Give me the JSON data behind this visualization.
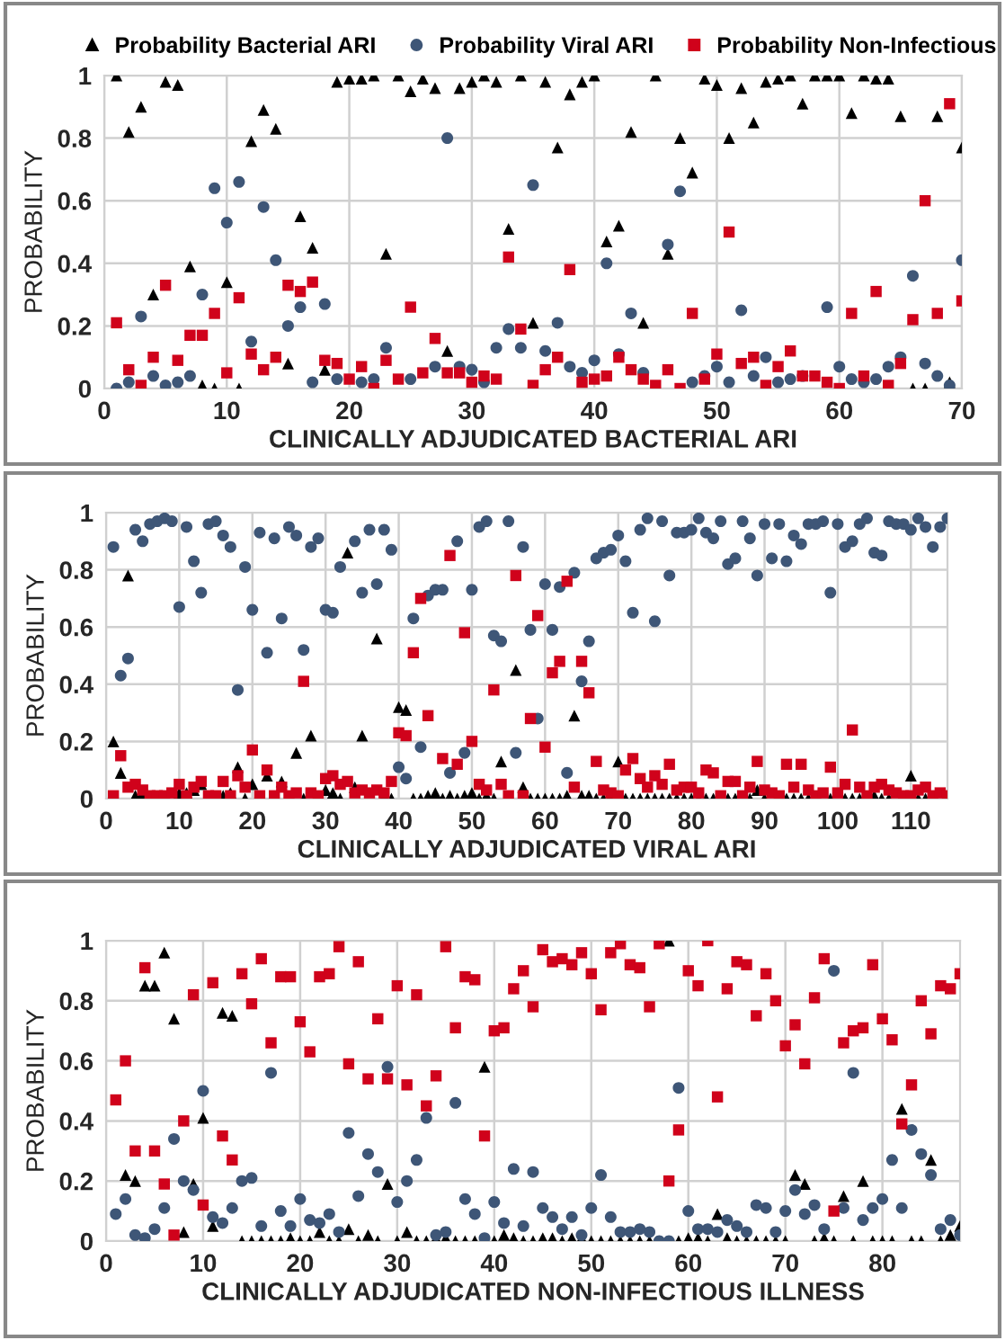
{
  "chart_data": [
    {
      "type": "scatter",
      "xlabel": "CLINICALLY ADJUDICATED BACTERIAL ARI",
      "ylabel": "PROBABILITY",
      "xlim": [
        0,
        70
      ],
      "xticks": [
        0,
        10,
        20,
        30,
        40,
        50,
        60,
        70
      ],
      "ylim": [
        0,
        1
      ],
      "yticks": [
        0,
        0.2,
        0.4,
        0.6,
        0.8,
        1
      ],
      "grid": true,
      "legend": "top",
      "x": [
        1,
        2,
        3,
        4,
        5,
        6,
        7,
        8,
        9,
        10,
        11,
        12,
        13,
        14,
        15,
        16,
        17,
        18,
        19,
        20,
        21,
        22,
        23,
        24,
        25,
        26,
        27,
        28,
        29,
        30,
        31,
        32,
        33,
        34,
        35,
        36,
        37,
        38,
        39,
        40,
        41,
        42,
        43,
        44,
        45,
        46,
        47,
        48,
        49,
        50,
        51,
        52,
        53,
        54,
        55,
        56,
        57,
        58,
        59,
        60,
        61,
        62,
        63,
        64,
        65,
        66,
        67,
        68,
        69,
        70
      ],
      "series": [
        {
          "name": "Probability Bacterial ARI",
          "color": "#000000",
          "marker": "triangle",
          "values": [
            1.0,
            0.82,
            0.9,
            0.3,
            0.98,
            0.97,
            0.39,
            0.01,
            0.0,
            0.34,
            0.0,
            0.79,
            0.89,
            0.83,
            0.08,
            0.55,
            0.45,
            0.06,
            0.98,
            0.99,
            0.99,
            1.0,
            0.43,
            1.0,
            0.95,
            0.99,
            0.96,
            0.12,
            0.96,
            0.98,
            1.0,
            0.98,
            0.51,
            1.0,
            0.21,
            0.98,
            0.77,
            0.94,
            0.98,
            1.0,
            0.47,
            0.52,
            0.82,
            0.21,
            1.0,
            0.43,
            0.8,
            0.69,
            0.99,
            0.97,
            0.8,
            0.96,
            0.85,
            0.98,
            0.99,
            1.0,
            0.91,
            1.0,
            1.0,
            1.0,
            0.88,
            1.0,
            0.99,
            0.99,
            0.87,
            0.0,
            0.0,
            0.87,
            0.02,
            0.77
          ]
        },
        {
          "name": "Probability Viral ARI",
          "color": "#3e5677",
          "marker": "circle",
          "values": [
            0.0,
            0.02,
            0.23,
            0.04,
            0.01,
            0.02,
            0.04,
            0.3,
            0.64,
            0.53,
            0.66,
            0.15,
            0.58,
            0.41,
            0.2,
            0.26,
            0.02,
            0.27,
            0.03,
            null,
            0.02,
            0.03,
            0.13,
            null,
            0.03,
            null,
            0.07,
            0.8,
            0.07,
            0.06,
            0.02,
            0.13,
            0.19,
            0.13,
            0.65,
            0.12,
            0.21,
            0.07,
            0.05,
            0.09,
            0.4,
            0.11,
            0.24,
            0.05,
            null,
            0.46,
            0.63,
            0.02,
            0.04,
            0.07,
            0.02,
            0.25,
            0.04,
            0.1,
            0.02,
            0.03,
            0.04,
            null,
            0.26,
            0.07,
            0.03,
            0.02,
            0.03,
            0.07,
            0.1,
            0.36,
            0.08,
            0.04,
            0.01,
            0.41
          ]
        },
        {
          "name": "Probability Non-Infectious",
          "color": "#d0021b",
          "marker": "square",
          "values": [
            0.21,
            0.06,
            0.01,
            0.1,
            0.33,
            0.09,
            0.17,
            0.17,
            0.24,
            0.05,
            0.29,
            0.11,
            0.06,
            0.1,
            0.33,
            0.31,
            0.34,
            0.09,
            0.08,
            0.03,
            0.07,
            0.0,
            0.09,
            0.03,
            0.26,
            0.05,
            0.16,
            0.05,
            0.05,
            0.02,
            0.04,
            0.03,
            0.42,
            0.19,
            0.01,
            0.06,
            0.1,
            0.38,
            0.02,
            0.03,
            0.04,
            0.1,
            0.06,
            0.03,
            0.01,
            0.06,
            0.0,
            0.24,
            0.03,
            0.11,
            0.5,
            0.08,
            0.1,
            0.01,
            0.07,
            0.12,
            0.04,
            0.04,
            0.02,
            0.0,
            0.24,
            0.04,
            0.31,
            0.01,
            0.08,
            0.22,
            0.6,
            0.24,
            0.91,
            0.28
          ]
        }
      ]
    },
    {
      "type": "scatter",
      "xlabel": "CLINICALLY ADJUDICATED VIRAL ARI",
      "ylabel": "PROBABILITY",
      "xlim": [
        0,
        115
      ],
      "xticks": [
        0,
        10,
        20,
        30,
        40,
        50,
        60,
        70,
        80,
        90,
        100,
        110
      ],
      "ylim": [
        0,
        1
      ],
      "yticks": [
        0,
        0.2,
        0.4,
        0.6,
        0.8,
        1
      ],
      "grid": true,
      "x": [
        1,
        2,
        3,
        4,
        5,
        6,
        7,
        8,
        9,
        10,
        11,
        12,
        13,
        14,
        15,
        16,
        17,
        18,
        19,
        20,
        21,
        22,
        23,
        24,
        25,
        26,
        27,
        28,
        29,
        30,
        31,
        32,
        33,
        34,
        35,
        36,
        37,
        38,
        39,
        40,
        41,
        42,
        43,
        44,
        45,
        46,
        47,
        48,
        49,
        50,
        51,
        52,
        53,
        54,
        55,
        56,
        57,
        58,
        59,
        60,
        61,
        62,
        63,
        64,
        65,
        66,
        67,
        68,
        69,
        70,
        71,
        72,
        73,
        74,
        75,
        76,
        77,
        78,
        79,
        80,
        81,
        82,
        83,
        84,
        85,
        86,
        87,
        88,
        89,
        90,
        91,
        92,
        93,
        94,
        95,
        96,
        97,
        98,
        99,
        100,
        101,
        102,
        103,
        104,
        105,
        106,
        107,
        108,
        109,
        110,
        111,
        112,
        113,
        114,
        115
      ],
      "series": [
        {
          "color": "#000000",
          "marker": "triangle",
          "values": [
            0.2,
            0.09,
            0.78,
            0.01,
            0.02,
            null,
            null,
            null,
            null,
            0.02,
            0.02,
            0.03,
            0.05,
            null,
            null,
            0.01,
            0.02,
            0.11,
            0.0,
            0.05,
            null,
            0.08,
            null,
            0.06,
            null,
            0.16,
            0.0,
            0.22,
            null,
            0.03,
            0.02,
            0.0,
            0.86,
            0.04,
            0.22,
            null,
            0.56,
            0.01,
            0.0,
            0.32,
            0.31,
            0.0,
            0.0,
            0.01,
            0.02,
            0.0,
            0.01,
            0.0,
            0.01,
            0.02,
            0.0,
            0.01,
            0.0,
            0.13,
            null,
            0.45,
            0.04,
            0.0,
            0.0,
            0.0,
            0.0,
            0.0,
            0.01,
            0.29,
            0.01,
            0.01,
            0.0,
            0.0,
            0.01,
            0.13,
            0.0,
            0.0,
            0.0,
            0.0,
            0.0,
            0.0,
            0.0,
            0.0,
            0.0,
            0.0,
            0.0,
            0.0,
            0.0,
            null,
            0.0,
            0.0,
            null,
            0.0,
            0.03,
            0.0,
            null,
            null,
            0.0,
            0.0,
            0.0,
            0.0,
            null,
            null,
            0.0,
            null,
            0.0,
            0.0,
            0.0,
            null,
            0.01,
            0.0,
            0.0,
            null,
            null,
            0.08,
            0.0,
            0.0,
            null,
            null,
            null
          ]
        },
        {
          "color": "#3e5677",
          "marker": "circle",
          "values": [
            0.88,
            0.43,
            0.49,
            0.94,
            0.9,
            0.96,
            0.97,
            0.98,
            0.97,
            0.67,
            0.95,
            0.83,
            0.72,
            0.96,
            0.97,
            0.92,
            0.88,
            0.38,
            0.81,
            0.66,
            0.93,
            0.51,
            0.91,
            0.63,
            0.95,
            0.92,
            0.52,
            0.88,
            0.91,
            0.66,
            0.65,
            0.81,
            null,
            0.9,
            0.72,
            0.94,
            0.75,
            0.94,
            0.87,
            0.11,
            0.07,
            0.63,
            0.18,
            0.71,
            0.73,
            0.73,
            0.09,
            0.9,
            0.16,
            0.73,
            0.95,
            0.97,
            0.57,
            0.55,
            0.97,
            0.16,
            0.88,
            0.59,
            0.28,
            0.75,
            0.59,
            0.74,
            0.09,
            0.79,
            0.41,
            0.55,
            0.84,
            0.86,
            0.87,
            0.92,
            0.83,
            0.65,
            0.94,
            0.98,
            0.62,
            0.97,
            0.78,
            0.93,
            0.93,
            0.94,
            0.98,
            0.93,
            0.91,
            0.97,
            0.82,
            0.84,
            0.97,
            0.91,
            0.78,
            0.96,
            0.84,
            0.96,
            0.83,
            0.92,
            0.89,
            0.96,
            0.96,
            0.97,
            0.72,
            0.96,
            0.88,
            0.9,
            0.96,
            0.98,
            0.86,
            0.85,
            0.97,
            0.96,
            0.96,
            0.94,
            0.98,
            0.95,
            0.88,
            0.95,
            0.98
          ]
        },
        {
          "color": "#d0021b",
          "marker": "square",
          "values": [
            0.01,
            0.15,
            0.04,
            0.05,
            0.03,
            0.01,
            0.01,
            0.01,
            0.02,
            0.05,
            0.01,
            0.04,
            0.06,
            0.01,
            0.01,
            0.06,
            0.01,
            0.08,
            0.04,
            0.17,
            0.01,
            0.1,
            0.01,
            0.04,
            0.01,
            0.02,
            0.41,
            0.02,
            0.01,
            0.07,
            0.08,
            0.05,
            0.06,
            0.02,
            0.03,
            0.02,
            0.03,
            0.02,
            0.06,
            0.23,
            0.22,
            0.51,
            0.7,
            0.29,
            null,
            0.14,
            0.85,
            0.12,
            0.58,
            0.2,
            0.05,
            0.03,
            0.38,
            0.05,
            0.01,
            0.78,
            0.01,
            0.28,
            0.64,
            0.18,
            0.44,
            0.48,
            0.76,
            0.04,
            0.48,
            0.37,
            0.13,
            0.03,
            0.02,
            0.01,
            0.1,
            0.14,
            0.07,
            0.04,
            0.08,
            0.05,
            0.12,
            0.03,
            0.04,
            0.04,
            0.02,
            0.1,
            0.09,
            0.01,
            0.06,
            0.06,
            0.01,
            0.04,
            0.13,
            0.03,
            0.02,
            0.01,
            0.12,
            0.04,
            0.12,
            0.03,
            0.01,
            0.02,
            0.11,
            0.02,
            0.05,
            0.24,
            0.04,
            0.01,
            0.04,
            0.05,
            0.03,
            0.02,
            0.01,
            0.01,
            0.03,
            0.04,
            0.01,
            0.02,
            0.01
          ]
        }
      ]
    },
    {
      "type": "scatter",
      "xlabel": "CLINICALLY ADJUDICATED NON-INFECTIOUS ILLNESS",
      "ylabel": "PROBABILITY",
      "xlim": [
        0,
        88
      ],
      "xticks": [
        0,
        10,
        20,
        30,
        40,
        50,
        60,
        70,
        80
      ],
      "ylim": [
        0,
        1
      ],
      "yticks": [
        0,
        0.2,
        0.4,
        0.6,
        0.8,
        1
      ],
      "grid": true,
      "x": [
        1,
        2,
        3,
        4,
        5,
        6,
        7,
        8,
        9,
        10,
        11,
        12,
        13,
        14,
        15,
        16,
        17,
        18,
        19,
        20,
        21,
        22,
        23,
        24,
        25,
        26,
        27,
        28,
        29,
        30,
        31,
        32,
        33,
        34,
        35,
        36,
        37,
        38,
        39,
        40,
        41,
        42,
        43,
        44,
        45,
        46,
        47,
        48,
        49,
        50,
        51,
        52,
        53,
        54,
        55,
        56,
        57,
        58,
        59,
        60,
        61,
        62,
        63,
        64,
        65,
        66,
        67,
        68,
        69,
        70,
        71,
        72,
        73,
        74,
        75,
        76,
        77,
        78,
        79,
        80,
        81,
        82,
        83,
        84,
        85,
        86,
        87,
        88
      ],
      "series": [
        {
          "color": "#000000",
          "marker": "triangle",
          "values": [
            null,
            0.22,
            0.2,
            0.85,
            0.85,
            0.96,
            0.74,
            0.03,
            0.19,
            0.41,
            0.05,
            0.76,
            0.75,
            0.0,
            0.0,
            0.0,
            0.0,
            0.0,
            0.01,
            0.0,
            0.0,
            0.03,
            0.0,
            0.0,
            0.04,
            0.0,
            0.02,
            0.0,
            0.19,
            0.0,
            0.03,
            0.0,
            0.0,
            0.01,
            0.01,
            0.0,
            0.0,
            0.0,
            0.58,
            0.0,
            0.02,
            0.01,
            0.0,
            0.0,
            0.01,
            0.01,
            0.0,
            0.01,
            0.01,
            0.0,
            0.0,
            0.0,
            0.0,
            0.0,
            0.0,
            0.0,
            null,
            1.0,
            0.0,
            0.01,
            0.01,
            0.0,
            0.09,
            0.01,
            0.0,
            0.0,
            0.0,
            0.0,
            0.0,
            0.0,
            0.22,
            0.19,
            0.0,
            0.01,
            0.0,
            0.15,
            0.0,
            0.2,
            0.0,
            0.0,
            0.0,
            0.44,
            0.0,
            0.0,
            0.27,
            0.0,
            0.02,
            0.05
          ]
        },
        {
          "color": "#3e5677",
          "marker": "circle",
          "values": [
            0.09,
            0.14,
            0.02,
            0.01,
            0.04,
            0.11,
            0.34,
            0.2,
            0.17,
            0.5,
            0.08,
            0.06,
            0.11,
            0.2,
            0.21,
            0.05,
            0.56,
            0.1,
            0.05,
            0.14,
            0.07,
            0.06,
            0.09,
            0.03,
            0.36,
            0.15,
            0.29,
            0.23,
            0.58,
            0.13,
            0.2,
            0.27,
            0.41,
            0.02,
            0.03,
            0.46,
            0.14,
            0.09,
            0.01,
            0.13,
            0.06,
            0.24,
            0.05,
            0.23,
            0.11,
            0.08,
            0.04,
            0.08,
            0.02,
            0.11,
            0.22,
            0.08,
            0.03,
            0.03,
            0.04,
            0.03,
            0.0,
            0.0,
            0.51,
            0.1,
            0.04,
            0.04,
            0.03,
            0.07,
            0.05,
            0.03,
            0.12,
            0.11,
            0.03,
            0.1,
            0.17,
            0.09,
            0.12,
            0.04,
            0.9,
            0.11,
            0.56,
            0.07,
            0.11,
            0.14,
            0.27,
            0.11,
            0.37,
            0.29,
            0.22,
            0.04,
            0.07,
            0.02
          ]
        },
        {
          "color": "#d0021b",
          "marker": "square",
          "values": [
            0.47,
            0.6,
            0.3,
            0.91,
            0.3,
            0.19,
            0.02,
            0.4,
            0.82,
            0.12,
            0.86,
            0.35,
            0.27,
            0.89,
            0.79,
            0.94,
            0.66,
            0.88,
            0.88,
            0.73,
            0.63,
            0.88,
            0.89,
            0.98,
            0.59,
            0.93,
            0.54,
            0.74,
            0.54,
            0.85,
            0.52,
            0.82,
            0.45,
            0.55,
            0.98,
            0.71,
            0.88,
            0.87,
            0.35,
            0.7,
            0.71,
            0.84,
            0.9,
            0.78,
            0.97,
            0.93,
            0.94,
            0.92,
            0.96,
            0.89,
            0.77,
            0.96,
            0.99,
            0.92,
            0.91,
            0.78,
            0.99,
            0.2,
            0.37,
            0.9,
            0.85,
            1.0,
            0.48,
            0.84,
            0.93,
            0.92,
            0.75,
            0.89,
            0.8,
            0.65,
            0.72,
            0.59,
            0.81,
            0.94,
            0.1,
            0.66,
            0.7,
            0.71,
            0.92,
            0.74,
            0.67,
            0.39,
            0.52,
            0.8,
            0.69,
            0.85,
            0.84,
            0.89
          ]
        }
      ]
    }
  ]
}
